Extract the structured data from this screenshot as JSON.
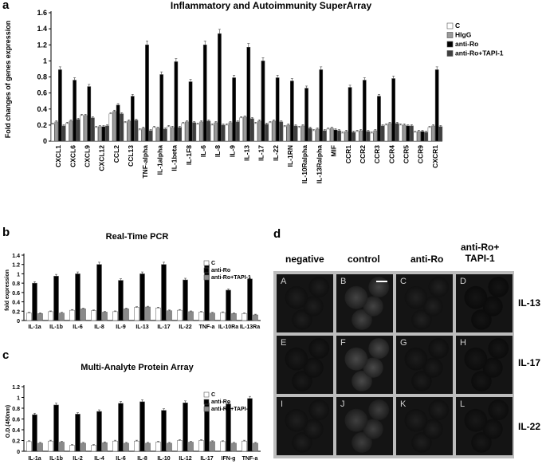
{
  "panel_letters": {
    "a": "a",
    "b": "b",
    "c": "c",
    "d": "d"
  },
  "chart_data": [
    {
      "id": "a",
      "type": "bar",
      "title": "Inflammatory and Autoimmunity SuperArray",
      "ylabel": "Fold changes of genes expression",
      "ylim": [
        0,
        1.6
      ],
      "yticks": [
        0,
        0.2,
        0.4,
        0.6,
        0.8,
        1,
        1.2,
        1.4,
        1.6
      ],
      "ytick_labels": [
        "0",
        "0.2",
        "0.4",
        "0.6",
        "0.8",
        "1",
        "1.2",
        "1.4",
        "1.6"
      ],
      "legend_position": "right",
      "categories": [
        "CXCL1",
        "CXCL6",
        "CXCL9",
        "CXCL12",
        "CCL2",
        "CCL13",
        "TNF-alpha",
        "IL-1alpha",
        "IL-1beta",
        "IL-1F8",
        "IL-6",
        "IL-8",
        "IL-9",
        "IL-13",
        "IL-17",
        "IL-22",
        "IL-1RN",
        "IL-10Ralpha",
        "IL-13Ralpha",
        "MIF",
        "CCR1",
        "CCR2",
        "CCR3",
        "CCR4",
        "CCR5",
        "CCR9",
        "CXCR1"
      ],
      "series": [
        {
          "name": "C",
          "color": "#ffffff",
          "values": [
            0.21,
            0.22,
            0.32,
            0.17,
            0.34,
            0.23,
            0.14,
            0.17,
            0.18,
            0.22,
            0.21,
            0.2,
            0.2,
            0.29,
            0.22,
            0.23,
            0.18,
            0.17,
            0.13,
            0.15,
            0.1,
            0.12,
            0.1,
            0.2,
            0.2,
            0.11,
            0.17
          ]
        },
        {
          "name": "HIgG",
          "color": "#9a9a9a",
          "values": [
            0.24,
            0.25,
            0.32,
            0.18,
            0.37,
            0.25,
            0.16,
            0.16,
            0.17,
            0.24,
            0.24,
            0.23,
            0.23,
            0.3,
            0.25,
            0.25,
            0.2,
            0.19,
            0.15,
            0.16,
            0.12,
            0.13,
            0.13,
            0.22,
            0.2,
            0.12,
            0.19
          ]
        },
        {
          "name": "anti-Ro",
          "color": "#000000",
          "values": [
            0.89,
            0.76,
            0.68,
            0.18,
            0.45,
            0.56,
            1.2,
            0.83,
            0.99,
            0.74,
            1.2,
            1.34,
            0.79,
            1.17,
            1.0,
            0.79,
            0.75,
            0.66,
            0.89,
            0.14,
            0.67,
            0.76,
            0.56,
            0.78,
            0.19,
            0.12,
            0.89
          ]
        },
        {
          "name": "anti-Ro+TAPI-1",
          "color": "#3f3f3f",
          "values": [
            0.19,
            0.27,
            0.29,
            0.19,
            0.34,
            0.26,
            0.13,
            0.15,
            0.17,
            0.23,
            0.25,
            0.2,
            0.24,
            0.28,
            0.21,
            0.24,
            0.19,
            0.16,
            0.13,
            0.13,
            0.11,
            0.12,
            0.19,
            0.22,
            0.19,
            0.11,
            0.18
          ]
        }
      ]
    },
    {
      "id": "b",
      "type": "bar",
      "title": "Real-Time PCR",
      "ylabel": "fold expression",
      "ylim": [
        0,
        1.4
      ],
      "yticks": [
        0,
        0.2,
        0.4,
        0.6,
        0.8,
        1,
        1.2,
        1.4
      ],
      "ytick_labels": [
        "0",
        "0.2",
        "0.4",
        "0.6",
        "0.8",
        "1",
        "1.2",
        "1.4"
      ],
      "legend_position": "top-right",
      "categories": [
        "IL-1a",
        "IL-1b",
        "IL-6",
        "IL-8",
        "IL-9",
        "IL-13",
        "IL-17",
        "IL-22",
        "TNF-a",
        "IL-10Ra",
        "IL-13Ra"
      ],
      "series": [
        {
          "name": "C",
          "color": "#ffffff",
          "values": [
            0.16,
            0.19,
            0.22,
            0.21,
            0.19,
            0.28,
            0.27,
            0.22,
            0.18,
            0.17,
            0.15
          ]
        },
        {
          "name": "anti-Ro",
          "color": "#000000",
          "values": [
            0.8,
            0.95,
            1.0,
            1.2,
            0.86,
            1.0,
            1.2,
            0.87,
            1.2,
            0.65,
            0.89
          ]
        },
        {
          "name": "anti-Ro+TAPI-1",
          "color": "#8a8a8a",
          "values": [
            0.15,
            0.16,
            0.25,
            0.18,
            0.25,
            0.29,
            0.21,
            0.19,
            0.16,
            0.15,
            0.12
          ]
        }
      ]
    },
    {
      "id": "c",
      "type": "bar",
      "title": "Multi-Analyte Protein Array",
      "ylabel": "O.D.(450nm)",
      "ylim": [
        0,
        1.2
      ],
      "yticks": [
        0,
        0.2,
        0.4,
        0.6,
        0.8,
        1,
        1.2
      ],
      "ytick_labels": [
        "0",
        "0.2",
        "0.4",
        "0.6",
        "0.8",
        "1",
        "1.2"
      ],
      "legend_position": "top-right",
      "categories": [
        "IL-1a",
        "IL-1b",
        "IL-2",
        "IL-4",
        "IL-6",
        "IL-8",
        "IL-10",
        "IL-12",
        "IL-17",
        "IFN-g",
        "TNF-a"
      ],
      "series": [
        {
          "name": "C",
          "color": "#ffffff",
          "values": [
            0.18,
            0.19,
            0.11,
            0.11,
            0.19,
            0.19,
            0.17,
            0.2,
            0.2,
            0.18,
            0.19
          ]
        },
        {
          "name": "anti-Ro",
          "color": "#000000",
          "values": [
            0.68,
            0.86,
            0.69,
            0.74,
            0.89,
            0.92,
            0.76,
            0.9,
            0.9,
            0.88,
            0.98
          ]
        },
        {
          "name": "anti-Ro+TAPI-1",
          "color": "#8a8a8a",
          "values": [
            0.15,
            0.17,
            0.15,
            0.16,
            0.15,
            0.15,
            0.15,
            0.17,
            0.18,
            0.15,
            0.15
          ]
        }
      ]
    }
  ],
  "microscopy": {
    "column_headers": [
      "negative",
      "control",
      "anti-Ro",
      "anti-Ro+\nTAPI-1"
    ],
    "row_labels": [
      "IL-13",
      "IL-17",
      "IL-22"
    ],
    "cell_letters": [
      [
        "A",
        "B",
        "C",
        "D"
      ],
      [
        "E",
        "F",
        "G",
        "H"
      ],
      [
        "I",
        "J",
        "K",
        "L"
      ]
    ],
    "cell_brightness": [
      [
        0.14,
        0.55,
        0.18,
        0.03
      ],
      [
        0.1,
        0.62,
        0.12,
        0.06
      ],
      [
        0.16,
        0.5,
        0.15,
        0.08
      ]
    ]
  }
}
